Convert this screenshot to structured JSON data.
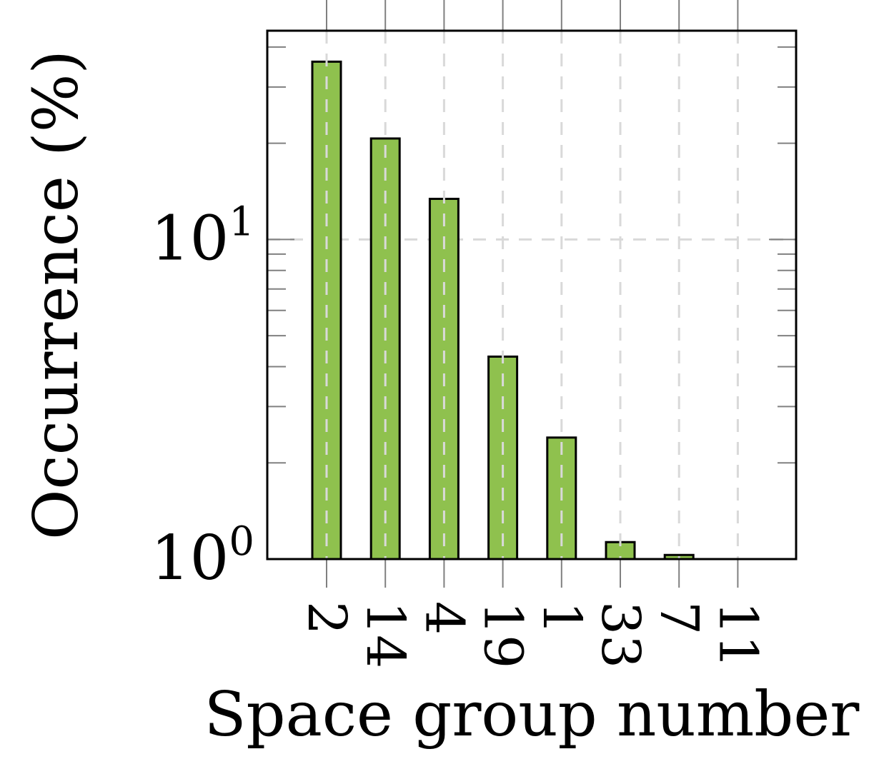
{
  "chart_data": {
    "type": "bar",
    "categories": [
      "2",
      "14",
      "4",
      "19",
      "1",
      "33",
      "7",
      "11"
    ],
    "values": [
      36.0,
      20.7,
      13.4,
      4.3,
      2.4,
      1.13,
      1.03,
      1.0
    ],
    "xlabel": "Space group number",
    "ylabel": "Occurrence (%)",
    "yscale": "log",
    "ylim": [
      1,
      45
    ],
    "yticks": [
      {
        "base": "10",
        "exp": "0",
        "value": 1
      },
      {
        "base": "10",
        "exp": "1",
        "value": 10
      }
    ],
    "grid": true,
    "colors": {
      "bar_fill": "#8fc14e",
      "bar_edge": "#000000",
      "grid": "#d9d9d9",
      "minor_tick": "#808080"
    }
  }
}
